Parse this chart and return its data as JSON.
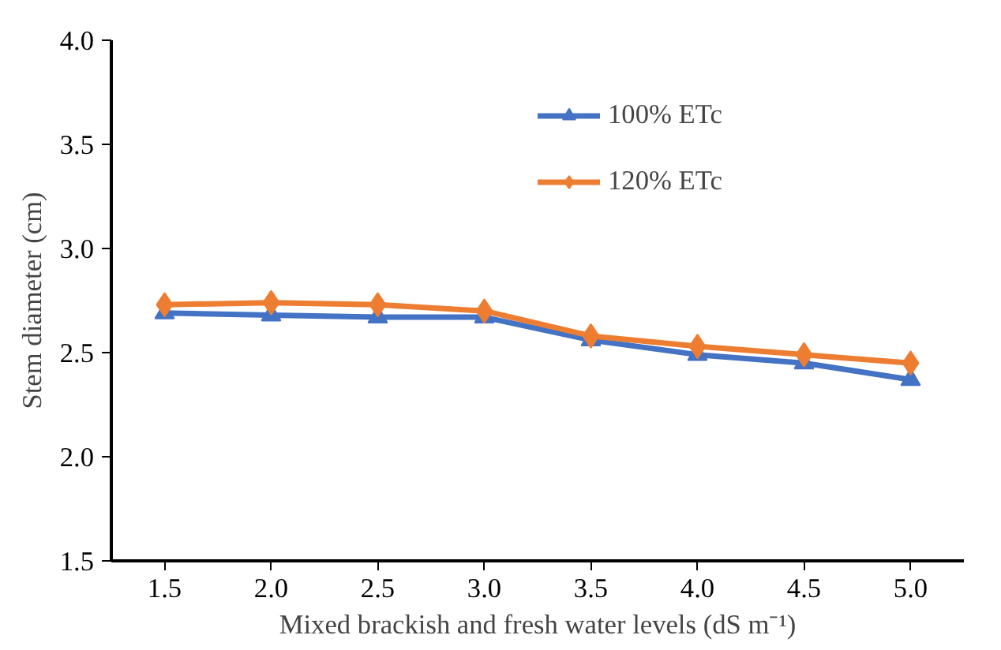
{
  "chart_data": {
    "type": "line",
    "xlabel": "Mixed brackish and fresh water levels (dS m⁻¹)",
    "ylabel": "Stem diameter (cm)",
    "categories": [
      "1.5",
      "2.0",
      "2.5",
      "3.0",
      "3.5",
      "4.0",
      "4.5",
      "5.0"
    ],
    "series": [
      {
        "name": "100% ETc",
        "color": "#4472c4",
        "marker": "triangle",
        "values": [
          2.69,
          2.68,
          2.67,
          2.67,
          2.56,
          2.49,
          2.45,
          2.37
        ]
      },
      {
        "name": "120% ETc",
        "color": "#ed7d31",
        "marker": "diamond",
        "values": [
          2.73,
          2.74,
          2.73,
          2.7,
          2.58,
          2.53,
          2.49,
          2.45
        ]
      }
    ],
    "ylim": [
      1.5,
      4.0
    ],
    "yticks": [
      1.5,
      {
        "value": 2,
        "label": "2.0"
      },
      2.5,
      {
        "value": 3,
        "label": "3.0"
      },
      3.5,
      {
        "value": 4,
        "label": "4.0"
      }
    ],
    "grid": false,
    "legend": "top right",
    "line_style": "solid"
  }
}
